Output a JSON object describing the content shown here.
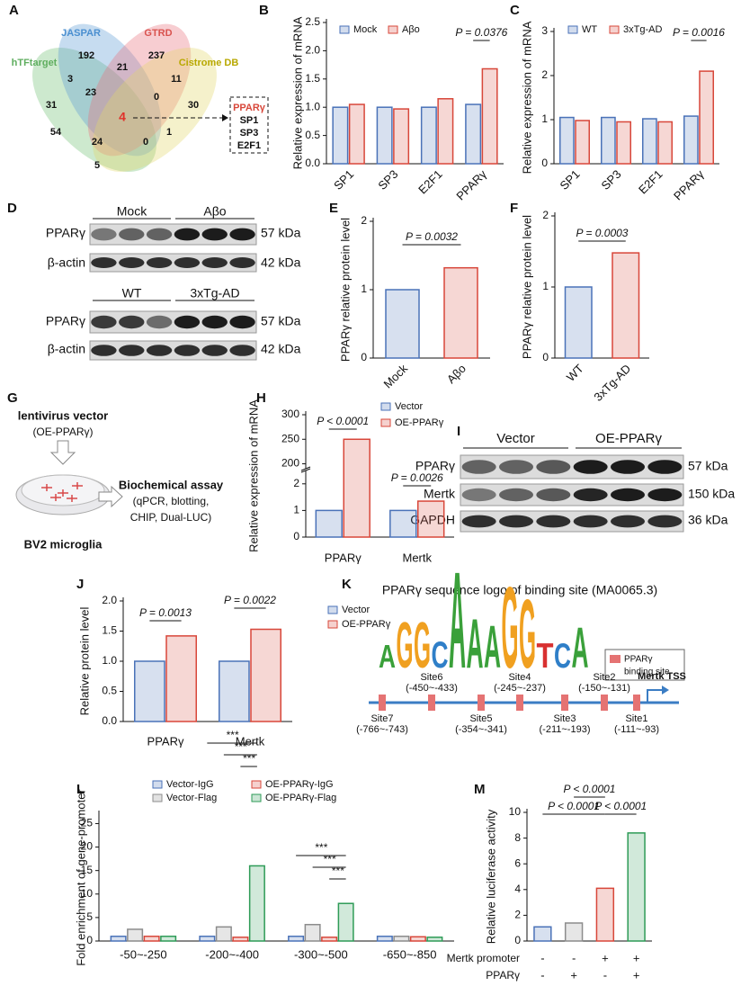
{
  "panel_labels": [
    "A",
    "B",
    "C",
    "D",
    "E",
    "F",
    "G",
    "H",
    "I",
    "J",
    "K",
    "L",
    "M"
  ],
  "venn": {
    "sets": [
      "JASPAR",
      "GTRD",
      "hTFtarget",
      "Cistrome DB"
    ],
    "counts": [
      192,
      21,
      237,
      3,
      11,
      23,
      0,
      31,
      30,
      4,
      54,
      1,
      24,
      0,
      5
    ],
    "shortlist": [
      "PPARγ",
      "SP1",
      "SP3",
      "E2F1"
    ]
  },
  "blot_d": {
    "groups_1": [
      "Mock",
      "Aβo"
    ],
    "groups_2": [
      "WT",
      "3xTg-AD"
    ],
    "rows": [
      "PPARγ",
      "β-actin"
    ],
    "sizes": [
      "57 kDa",
      "42 kDa"
    ]
  },
  "blot_i": {
    "groups": [
      "Vector",
      "OE-PPARγ"
    ],
    "rows": [
      "PPARγ",
      "Mertk",
      "GAPDH"
    ],
    "sizes": [
      "57 kDa",
      "150 kDa",
      "36 kDa"
    ]
  },
  "scheme_g": {
    "vector": "lentivirus vector",
    "construct": "(OE-PPARγ)",
    "cells": "BV2 microglia",
    "assay": "Biochemical assay",
    "methods": [
      "(qPCR, blotting,",
      "CHIP,  Dual-LUC)"
    ]
  },
  "logo_k": {
    "title": "PPARγ sequence logo of binding site (MA0065.3)",
    "letters": [
      "A",
      "G",
      "G",
      "C",
      "A",
      "A",
      "A",
      "G",
      "G",
      "T",
      "C",
      "A"
    ],
    "legend": [
      "PPARγ",
      "binding site"
    ],
    "sites": [
      {
        "name": "Site7",
        "range": "(-766~-743)"
      },
      {
        "name": "Site6",
        "range": "(-450~-433)"
      },
      {
        "name": "Site5",
        "range": "(-354~-341)"
      },
      {
        "name": "Site4",
        "range": "(-245~-237)"
      },
      {
        "name": "Site3",
        "range": "(-211~-193)"
      },
      {
        "name": "Site2",
        "range": "(-150~-131)"
      },
      {
        "name": "Site1",
        "range": "(-111~-93)"
      }
    ],
    "tss": "Mertk TSS"
  },
  "chart_data": [
    {
      "type": "bar",
      "ylabel": "Relative expression of mRNA",
      "categories": [
        "SP1",
        "SP3",
        "E2F1",
        "PPARγ"
      ],
      "series": [
        {
          "name": "Mock",
          "color": "#4a72b8",
          "values": [
            1.0,
            1.0,
            1.0,
            1.05
          ]
        },
        {
          "name": "Aβo",
          "color": "#d8473a",
          "values": [
            1.05,
            0.97,
            1.15,
            1.68
          ]
        }
      ],
      "ylim": [
        0,
        2.5
      ],
      "yticks": [
        {
          "value": 0,
          "label": "0.0"
        },
        0.5,
        {
          "value": 1,
          "label": "1.0"
        },
        1.5,
        {
          "value": 2,
          "label": "2.0"
        },
        2.5
      ],
      "annotations": [
        "P = 0.0376"
      ]
    },
    {
      "type": "bar",
      "ylabel": "Relative expression of mRNA",
      "categories": [
        "SP1",
        "SP3",
        "E2F1",
        "PPARγ"
      ],
      "series": [
        {
          "name": "WT",
          "color": "#4a72b8",
          "values": [
            1.05,
            1.05,
            1.02,
            1.08
          ]
        },
        {
          "name": "3xTg-AD",
          "color": "#d8473a",
          "values": [
            0.98,
            0.95,
            0.95,
            2.1
          ]
        }
      ],
      "ylim": [
        0,
        3
      ],
      "yticks": [
        0,
        1,
        2,
        3
      ],
      "annotations": [
        "P = 0.0016"
      ]
    },
    {
      "type": "bar",
      "ylabel": "PPARγ relative protein level",
      "categories": [
        "Mock",
        "Aβo"
      ],
      "values": [
        1.0,
        1.32
      ],
      "colors": [
        "#4a72b8",
        "#d8473a"
      ],
      "ylim": [
        0,
        2
      ],
      "yticks": [
        0,
        1,
        2
      ],
      "annotations": [
        "P = 0.0032"
      ]
    },
    {
      "type": "bar",
      "ylabel": "PPARγ relative protein level",
      "categories": [
        "WT",
        "3xTg-AD"
      ],
      "values": [
        1.0,
        1.48
      ],
      "colors": [
        "#4a72b8",
        "#d8473a"
      ],
      "ylim": [
        0,
        2
      ],
      "yticks": [
        0,
        1,
        2
      ],
      "annotations": [
        "P = 0.0003"
      ]
    },
    {
      "type": "bar",
      "ylabel": "Relative expression of mRNA",
      "categories": [
        "PPARγ",
        "Mertk"
      ],
      "series": [
        {
          "name": "Vector",
          "color": "#4a72b8",
          "values": [
            1.0,
            1.0
          ]
        },
        {
          "name": "OE-PPARγ",
          "color": "#d8473a",
          "values": [
            250,
            1.35
          ]
        }
      ],
      "ylim": [
        0,
        300
      ],
      "yticks": [
        0,
        1,
        2,
        200,
        250,
        300
      ],
      "ybreak": [
        2.5,
        190
      ],
      "annotations": [
        "P < 0.0001",
        "P = 0.0026"
      ]
    },
    {
      "type": "bar",
      "ylabel": "Relative protein level",
      "categories": [
        "PPARγ",
        "Mertk"
      ],
      "series": [
        {
          "name": "Vector",
          "color": "#4a72b8",
          "values": [
            1.0,
            1.0
          ]
        },
        {
          "name": "OE-PPARγ",
          "color": "#d8473a",
          "values": [
            1.42,
            1.53
          ]
        }
      ],
      "ylim": [
        0,
        2
      ],
      "yticks": [
        {
          "value": 0,
          "label": "0.0"
        },
        0.5,
        {
          "value": 1,
          "label": "1.0"
        },
        1.5,
        {
          "value": 2,
          "label": "2.0"
        }
      ],
      "annotations": [
        "P = 0.0013",
        "P = 0.0022"
      ]
    },
    {
      "type": "bar",
      "ylabel": "Fold enrichment of gene-promoter",
      "categories": [
        "-50~-250",
        "-200~-400",
        "-300~-500",
        "-650~-850"
      ],
      "series": [
        {
          "name": "Vector-IgG",
          "color": "#4a72b8",
          "values": [
            1.0,
            1.0,
            1.0,
            1.0
          ]
        },
        {
          "name": "Vector-Flag",
          "color": "#8c8c8c",
          "values": [
            2.5,
            3.0,
            3.5,
            1.0
          ]
        },
        {
          "name": "OE-PPARγ-IgG",
          "color": "#d8473a",
          "values": [
            1.0,
            0.8,
            0.8,
            0.9
          ]
        },
        {
          "name": "OE-PPARγ-Flag",
          "color": "#2e9b57",
          "values": [
            1.0,
            16.0,
            8.0,
            0.8
          ]
        }
      ],
      "ylim": [
        0,
        27
      ],
      "yticks": [
        0,
        5,
        10,
        15,
        20,
        25
      ],
      "annotations": [
        "***",
        "***",
        "***",
        "***",
        "***",
        "***"
      ]
    },
    {
      "type": "bar",
      "ylabel": "Relative luciferase activity",
      "categories": [
        null,
        null,
        null,
        null
      ],
      "values": [
        1.1,
        1.4,
        4.1,
        8.4
      ],
      "colors": [
        "#4a72b8",
        "#8c8c8c",
        "#d8473a",
        "#2e9b57"
      ],
      "ylim": [
        0,
        10
      ],
      "yticks": [
        0,
        2,
        4,
        6,
        8,
        10
      ],
      "annotations": [
        "P < 0.0001",
        "P < 0.0001",
        "P < 0.0001"
      ],
      "conditions": [
        {
          "name": "Mertk promoter",
          "signs": [
            "-",
            "-",
            "+",
            "+"
          ]
        },
        {
          "name": "PPARγ",
          "signs": [
            "-",
            "+",
            "-",
            "+"
          ]
        }
      ]
    }
  ]
}
